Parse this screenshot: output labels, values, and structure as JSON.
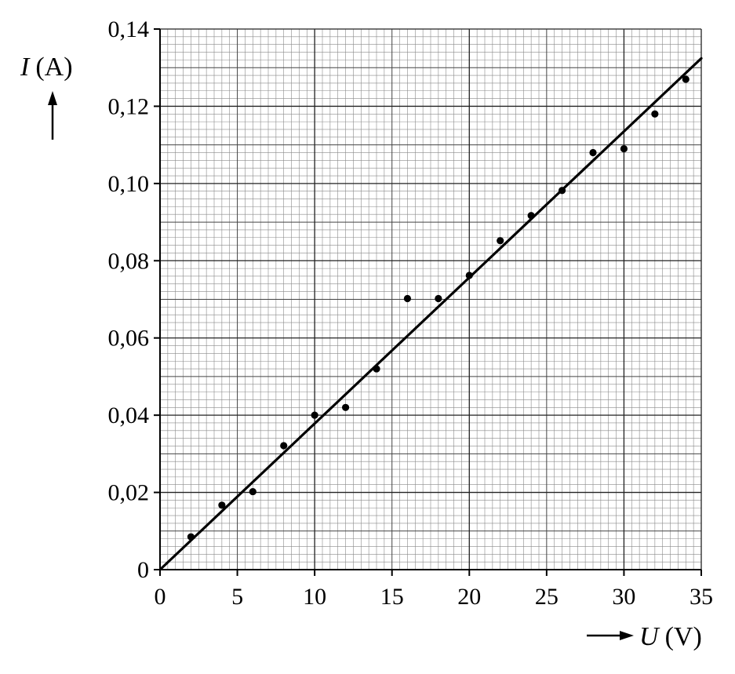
{
  "chart_data": {
    "type": "scatter",
    "title": "",
    "xlabel": {
      "symbol": "U",
      "unit": "(V)"
    },
    "ylabel": {
      "symbol": "I",
      "unit": "(A)"
    },
    "xlim": [
      0,
      35
    ],
    "ylim": [
      0,
      0.14
    ],
    "x_ticks": [
      0,
      5,
      10,
      15,
      20,
      25,
      30,
      35
    ],
    "x_tick_labels": [
      "0",
      "5",
      "10",
      "15",
      "20",
      "25",
      "30",
      "35"
    ],
    "y_ticks": [
      0,
      0.02,
      0.04,
      0.06,
      0.08,
      0.1,
      0.12,
      0.14
    ],
    "y_tick_labels": [
      "0",
      "0,02",
      "0,04",
      "0,06",
      "0,08",
      "0,10",
      "0,12",
      "0,14"
    ],
    "grid": "millimeter",
    "series": [
      {
        "x": [
          2,
          4,
          6,
          8,
          10,
          12,
          14,
          16,
          18,
          20,
          22,
          24,
          26,
          28,
          30,
          32,
          34
        ],
        "y": [
          0.0085,
          0.0167,
          0.0202,
          0.0321,
          0.04,
          0.042,
          0.052,
          0.0702,
          0.0702,
          0.0762,
          0.0852,
          0.0917,
          0.0982,
          0.108,
          0.109,
          0.118,
          0.127
        ]
      }
    ],
    "fit_line": {
      "x": [
        0,
        35
      ],
      "y": [
        0,
        0.1324
      ]
    }
  }
}
